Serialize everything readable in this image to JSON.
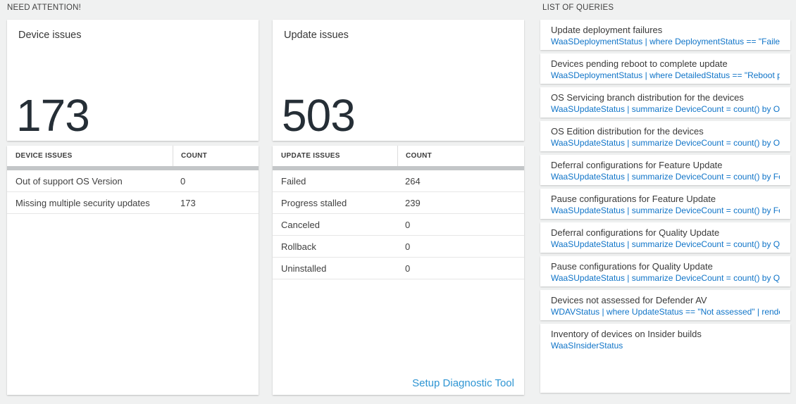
{
  "colors": {
    "accent_blue": "#0f74c8",
    "setup_link_blue": "#2e95d3",
    "big_number": "#252e36",
    "header_band": "#c3c6c8"
  },
  "need_attention": {
    "header": "NEED ATTENTION!",
    "device": {
      "title": "Device issues",
      "big_number": "173",
      "table": {
        "headers": [
          "DEVICE ISSUES",
          "COUNT"
        ],
        "rows": [
          [
            "Out of support OS Version",
            "0"
          ],
          [
            "Missing multiple security updates",
            "173"
          ]
        ]
      }
    },
    "update": {
      "title": "Update issues",
      "big_number": "503",
      "table": {
        "headers": [
          "UPDATE ISSUES",
          "COUNT"
        ],
        "rows": [
          [
            "Failed",
            "264"
          ],
          [
            "Progress stalled",
            "239"
          ],
          [
            "Canceled",
            "0"
          ],
          [
            "Rollback",
            "0"
          ],
          [
            "Uninstalled",
            "0"
          ]
        ]
      },
      "footer_link": "Setup Diagnostic Tool"
    }
  },
  "queries": {
    "header": "LIST OF QUERIES",
    "items": [
      {
        "title": "Update deployment failures",
        "query": "WaaSDeploymentStatus | where DeploymentStatus == \"Failed\" |..."
      },
      {
        "title": "Devices pending reboot to complete update",
        "query": "WaaSDeploymentStatus | where DetailedStatus == \"Reboot pend..."
      },
      {
        "title": "OS Servicing branch distribution for the devices",
        "query": "WaaSUpdateStatus | summarize DeviceCount = count() by OSSer..."
      },
      {
        "title": "OS Edition distribution for the devices",
        "query": "WaaSUpdateStatus | summarize DeviceCount = count() by OSEdit..."
      },
      {
        "title": "Deferral configurations for Feature Update",
        "query": "WaaSUpdateStatus | summarize DeviceCount = count() by Featur..."
      },
      {
        "title": "Pause configurations for Feature Update",
        "query": "WaaSUpdateStatus | summarize DeviceCount = count() by Featur..."
      },
      {
        "title": "Deferral configurations for Quality Update",
        "query": "WaaSUpdateStatus | summarize DeviceCount = count() by Qualit..."
      },
      {
        "title": "Pause configurations for Quality Update",
        "query": "WaaSUpdateStatus | summarize DeviceCount = count() by Qualit..."
      },
      {
        "title": "Devices not assessed for Defender AV",
        "query": "WDAVStatus | where UpdateStatus == \"Not assessed\" | render ta..."
      },
      {
        "title": "Inventory of devices on Insider builds",
        "query": "WaaSInsiderStatus"
      }
    ]
  }
}
